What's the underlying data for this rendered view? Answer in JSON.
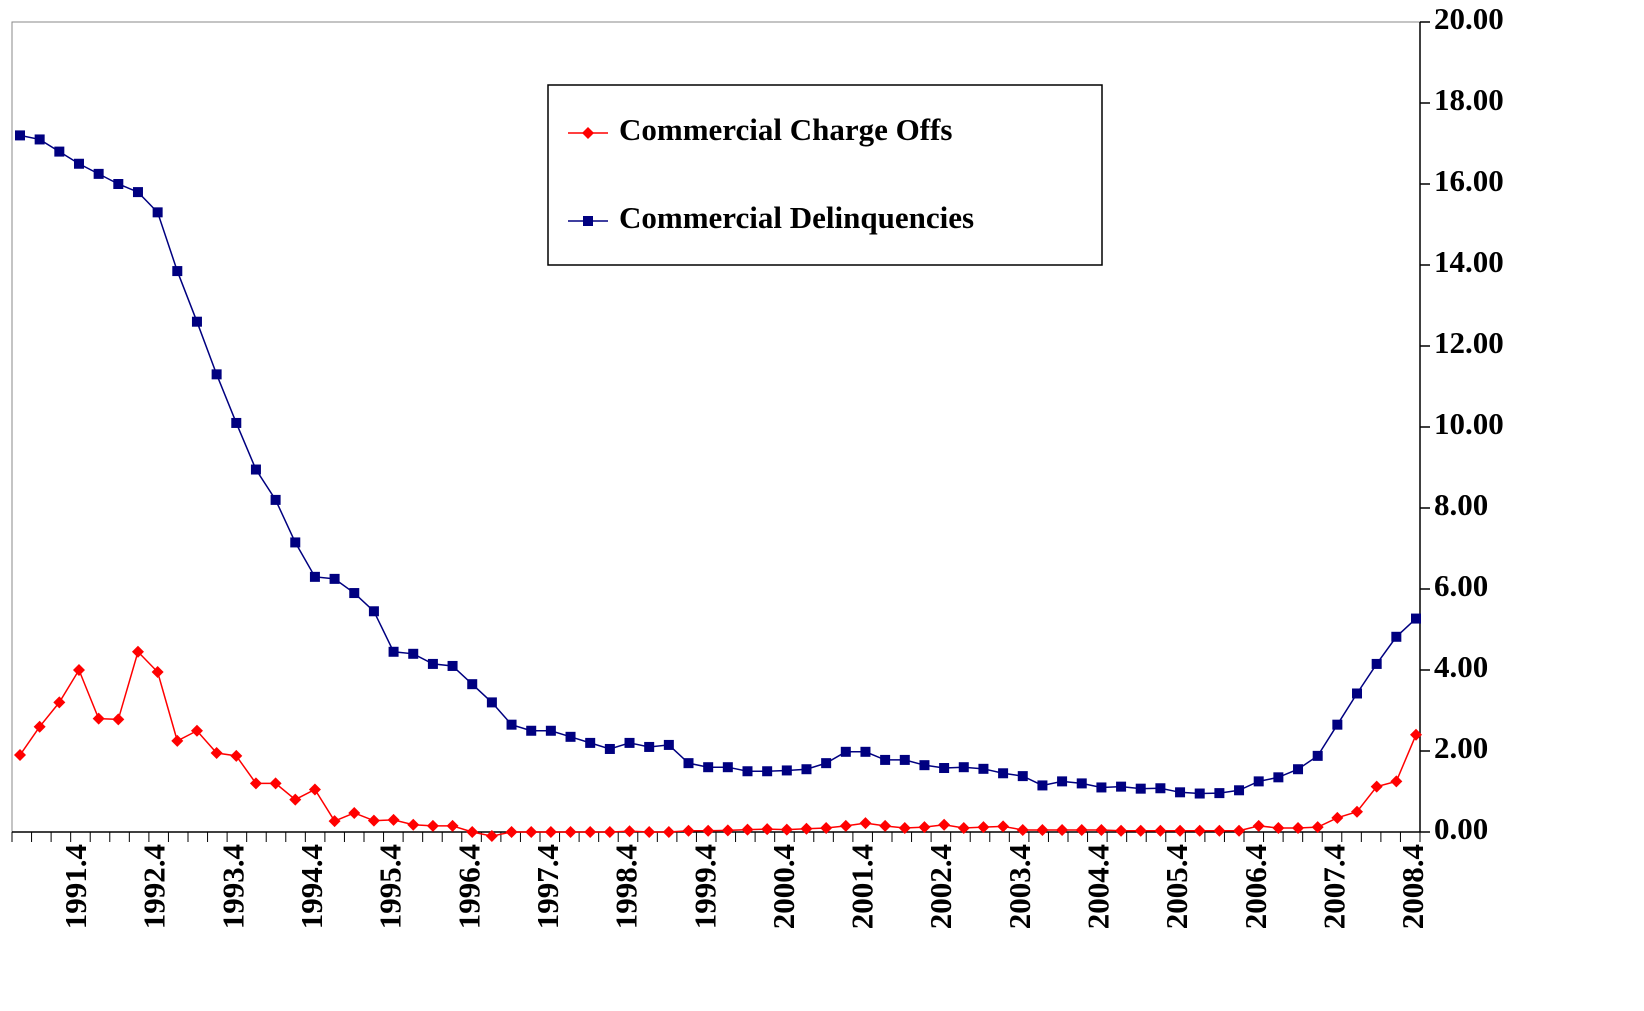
{
  "chart_data": {
    "type": "line",
    "categories": [
      null,
      null,
      null,
      "1991.4",
      null,
      null,
      null,
      "1992.4",
      null,
      null,
      null,
      "1993.4",
      null,
      null,
      null,
      "1994.4",
      null,
      null,
      null,
      "1995.4",
      null,
      null,
      null,
      "1996.4",
      null,
      null,
      null,
      "1997.4",
      null,
      null,
      null,
      "1998.4",
      null,
      null,
      null,
      "1999.4",
      null,
      null,
      null,
      "2000.4",
      null,
      null,
      null,
      "2001.4",
      null,
      null,
      null,
      "2002.4",
      null,
      null,
      null,
      "2003.4",
      null,
      null,
      null,
      "2004.4",
      null,
      null,
      null,
      "2005.4",
      null,
      null,
      null,
      "2006.4",
      null,
      null,
      null,
      "2007.4",
      null,
      null,
      null,
      "2008.4"
    ],
    "series": [
      {
        "name": "Commercial Charge Offs",
        "color": "#ff0000",
        "marker": "diamond",
        "values": [
          1.9,
          2.6,
          3.2,
          4.0,
          2.8,
          2.78,
          4.45,
          3.95,
          2.25,
          2.5,
          1.95,
          1.88,
          1.2,
          1.2,
          0.8,
          1.05,
          0.27,
          0.47,
          0.28,
          0.3,
          0.18,
          0.15,
          0.15,
          0.0,
          -0.1,
          0.0,
          0.0,
          0.0,
          0.0,
          0.0,
          0.0,
          0.02,
          0.0,
          0.0,
          0.03,
          0.03,
          0.04,
          0.06,
          0.07,
          0.06,
          0.08,
          0.1,
          0.15,
          0.22,
          0.15,
          0.1,
          0.12,
          0.18,
          0.1,
          0.12,
          0.14,
          0.05,
          0.05,
          0.05,
          0.05,
          0.05,
          0.03,
          0.03,
          0.03,
          0.03,
          0.03,
          0.03,
          0.03,
          0.15,
          0.1,
          0.1,
          0.12,
          0.35,
          0.5,
          1.12,
          1.25,
          2.4
        ]
      },
      {
        "name": "Commercial Delinquencies",
        "color": "#000080",
        "marker": "square",
        "values": [
          17.2,
          17.1,
          16.8,
          16.5,
          16.25,
          16.0,
          15.8,
          15.3,
          13.85,
          12.6,
          11.3,
          10.1,
          8.95,
          8.2,
          7.15,
          6.3,
          6.25,
          5.9,
          5.45,
          4.45,
          4.4,
          4.15,
          4.1,
          3.65,
          3.2,
          2.65,
          2.5,
          2.5,
          2.35,
          2.2,
          2.05,
          2.2,
          2.1,
          2.15,
          1.7,
          1.6,
          1.6,
          1.5,
          1.5,
          1.52,
          1.55,
          1.7,
          1.98,
          1.98,
          1.78,
          1.78,
          1.65,
          1.58,
          1.6,
          1.56,
          1.45,
          1.38,
          1.15,
          1.25,
          1.2,
          1.1,
          1.12,
          1.07,
          1.08,
          0.98,
          0.95,
          0.96,
          1.03,
          1.25,
          1.35,
          1.55,
          1.88,
          2.65,
          3.42,
          4.15,
          4.82,
          5.27
        ]
      }
    ],
    "ylim": [
      0,
      20
    ],
    "yticks": [
      {
        "value": 0,
        "label": "0.00"
      },
      {
        "value": 2,
        "label": "2.00"
      },
      {
        "value": 4,
        "label": "4.00"
      },
      {
        "value": 6,
        "label": "6.00"
      },
      {
        "value": 8,
        "label": "8.00"
      },
      {
        "value": 10,
        "label": "10.00"
      },
      {
        "value": 12,
        "label": "12.00"
      },
      {
        "value": 14,
        "label": "14.00"
      },
      {
        "value": 16,
        "label": "16.00"
      },
      {
        "value": 18,
        "label": "18.00"
      },
      {
        "value": 20,
        "label": "20.00"
      }
    ],
    "y_axis_side": "right",
    "grid": false
  }
}
